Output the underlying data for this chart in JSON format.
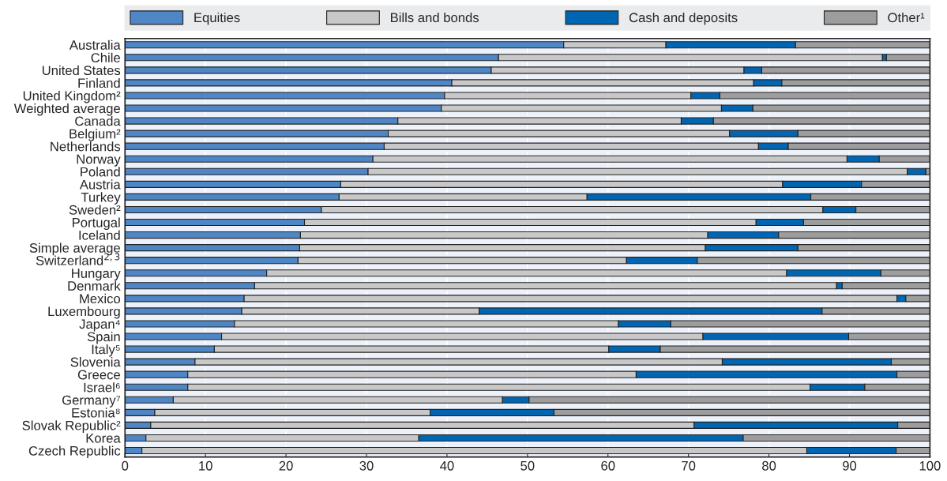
{
  "chart_data": {
    "type": "bar",
    "orientation": "horizontal",
    "stacked": true,
    "categories": [
      "Australia",
      "Chile",
      "United States",
      "Finland",
      "United Kingdom²",
      "Weighted average",
      "Canada",
      "Belgium²",
      "Netherlands",
      "Norway",
      "Poland",
      "Austria",
      "Turkey",
      "Sweden²",
      "Portugal",
      "Iceland",
      "Simple average",
      "Switzerland$^{2,3}$",
      "Hungary",
      "Denmark",
      "Mexico",
      "Luxembourg",
      "Japan⁴",
      "Spain",
      "Italy⁵",
      "Slovenia",
      "Greece",
      "Israel⁶",
      "Germany⁷",
      "Estonia⁸",
      "Slovak Republic²",
      "Korea",
      "Czech Republic"
    ],
    "series": [
      {
        "name": "Equities",
        "color": "#4f86c6",
        "values": [
          54.5,
          46.4,
          45.5,
          40.6,
          39.7,
          39.3,
          33.9,
          32.7,
          32.2,
          30.8,
          30.2,
          26.8,
          26.6,
          24.4,
          22.3,
          21.8,
          21.7,
          21.5,
          17.6,
          16.1,
          14.8,
          14.5,
          13.6,
          12.0,
          11.1,
          8.7,
          7.8,
          7.8,
          6.0,
          3.7,
          3.2,
          2.6,
          2.1
        ]
      },
      {
        "name": "Bills and bonds",
        "color": "#c8c8c8",
        "values": [
          12.7,
          47.7,
          31.4,
          37.5,
          30.6,
          34.8,
          35.2,
          42.4,
          46.5,
          58.9,
          67.0,
          54.9,
          30.8,
          62.3,
          56.1,
          50.6,
          50.4,
          40.8,
          64.6,
          72.3,
          81.1,
          29.5,
          47.7,
          59.8,
          49.0,
          65.5,
          55.7,
          77.3,
          40.9,
          34.2,
          67.5,
          33.9,
          82.6
        ]
      },
      {
        "name": "Cash and deposits",
        "color": "#0066b3",
        "values": [
          16.1,
          0.5,
          2.2,
          3.5,
          3.6,
          3.9,
          4.0,
          8.5,
          3.7,
          4.0,
          2.3,
          9.8,
          27.8,
          4.1,
          5.9,
          8.8,
          11.5,
          8.8,
          11.7,
          0.7,
          1.1,
          42.6,
          6.5,
          18.1,
          6.4,
          21.0,
          32.4,
          6.8,
          3.3,
          15.4,
          25.3,
          40.3,
          11.1
        ]
      },
      {
        "name": "Other¹",
        "color": "#9d9d9d",
        "values": [
          16.7,
          5.4,
          20.9,
          18.4,
          26.1,
          22.0,
          26.9,
          16.4,
          17.6,
          6.3,
          0.5,
          8.5,
          14.8,
          9.2,
          15.7,
          18.8,
          16.4,
          28.9,
          6.1,
          10.9,
          3.0,
          13.4,
          32.2,
          10.1,
          33.5,
          4.8,
          4.1,
          8.1,
          49.8,
          46.7,
          4.0,
          23.2,
          4.2
        ]
      }
    ],
    "xlim": [
      0,
      100
    ],
    "xticks": [
      0,
      10,
      20,
      30,
      40,
      50,
      60,
      70,
      80,
      90,
      100
    ],
    "grid": "x",
    "legend": "top"
  }
}
